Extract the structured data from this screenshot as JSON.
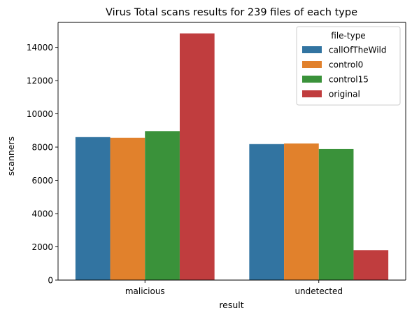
{
  "chart_data": {
    "type": "bar",
    "title": "Virus Total scans results for 239 files of each type",
    "xlabel": "result",
    "ylabel": "scanners",
    "categories": [
      "malicious",
      "undetected"
    ],
    "ylim": [
      0,
      15500
    ],
    "yticks": [
      0,
      2000,
      4000,
      6000,
      8000,
      10000,
      12000,
      14000
    ],
    "grid": false,
    "legend_title": "file-type",
    "legend_position": "top-right",
    "series": [
      {
        "name": "callOfTheWild",
        "color": "#3274a1",
        "values": [
          8600,
          8180
        ]
      },
      {
        "name": "control0",
        "color": "#e1812c",
        "values": [
          8560,
          8220
        ]
      },
      {
        "name": "control15",
        "color": "#3a923a",
        "values": [
          8960,
          7880
        ]
      },
      {
        "name": "original",
        "color": "#c03d3e",
        "values": [
          14840,
          1800
        ]
      }
    ]
  }
}
